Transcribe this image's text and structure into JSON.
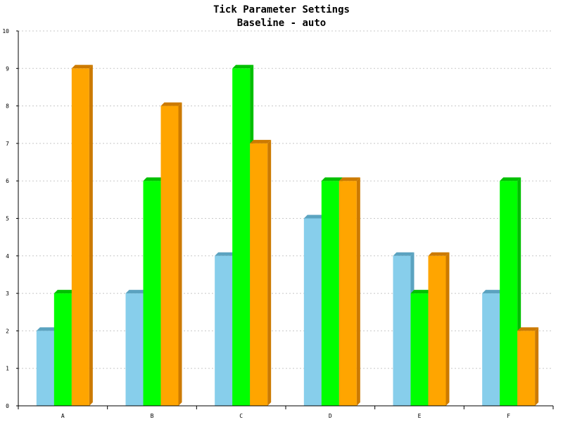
{
  "chart_data": {
    "type": "bar",
    "title": "Tick Parameter Settings",
    "subtitle": "Baseline - auto",
    "xlabel": "",
    "ylabel": "",
    "categories": [
      "A",
      "B",
      "C",
      "D",
      "E",
      "F"
    ],
    "series": [
      {
        "values": [
          2,
          3,
          4,
          5,
          4,
          3
        ],
        "color": "#87CEEB",
        "side_color": "#5BA3C0"
      },
      {
        "values": [
          3,
          6,
          9,
          6,
          3,
          6
        ],
        "color": "#00FF00",
        "side_color": "#00C000"
      },
      {
        "values": [
          9,
          8,
          7,
          6,
          4,
          2
        ],
        "color": "#FFA500",
        "side_color": "#CC7A00"
      }
    ],
    "ylim": [
      0,
      10
    ],
    "yticks": [
      "0",
      "1",
      "2",
      "3",
      "4",
      "5",
      "6",
      "7",
      "8",
      "9",
      "10"
    ],
    "grid": true,
    "style": "3d-bar"
  }
}
